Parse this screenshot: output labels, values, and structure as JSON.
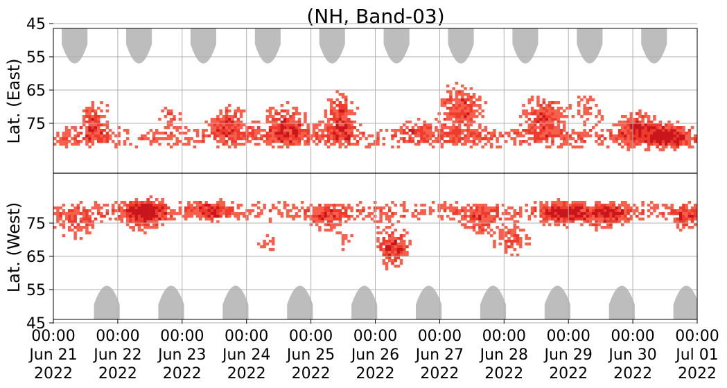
{
  "chart_data": {
    "type": "heatmap",
    "title": "(NH, Band-03)",
    "ylabel_top": "Lat. (East)",
    "ylabel_bottom": "Lat. (West)",
    "y_tick_labels_top": [
      "45",
      "55",
      "65",
      "75"
    ],
    "y_tick_labels_bottom": [
      "75",
      "65",
      "55",
      "45"
    ],
    "y_ticks_top": [
      45,
      55,
      65,
      75
    ],
    "y_ticks_bottom": [
      75,
      65,
      55,
      45
    ],
    "y_axis_note": "latitude folded at the pole: east half on top, west half below, pole line at center",
    "x_ticks": [
      {
        "time": "00:00",
        "date": "Jun 21",
        "year": "2022"
      },
      {
        "time": "00:00",
        "date": "Jun 22",
        "year": "2022"
      },
      {
        "time": "00:00",
        "date": "Jun 23",
        "year": "2022"
      },
      {
        "time": "00:00",
        "date": "Jun 24",
        "year": "2022"
      },
      {
        "time": "00:00",
        "date": "Jun 25",
        "year": "2022"
      },
      {
        "time": "00:00",
        "date": "Jun 26",
        "year": "2022"
      },
      {
        "time": "00:00",
        "date": "Jun 27",
        "year": "2022"
      },
      {
        "time": "00:00",
        "date": "Jun 28",
        "year": "2022"
      },
      {
        "time": "00:00",
        "date": "Jun 29",
        "year": "2022"
      },
      {
        "time": "00:00",
        "date": "Jun 30",
        "year": "2022"
      },
      {
        "time": "00:00",
        "date": "Jul 01",
        "year": "2022"
      }
    ],
    "x_range": [
      "2022-06-21 00:00",
      "2022-07-01 00:00"
    ],
    "grid": true,
    "colors": {
      "high": "#c8161c",
      "medium": "#ef3b2c",
      "low": "#f6604c",
      "no_coverage": "#bdbdbd",
      "grid": "#b0b0b0",
      "pole_line": "#000000"
    },
    "no_coverage_lobes": {
      "top_centers_day": [
        0.33,
        1.33,
        2.33,
        3.33,
        4.33,
        5.33,
        6.33,
        7.33,
        8.33,
        9.33
      ],
      "bottom_centers_day": [
        0.83,
        1.83,
        2.83,
        3.83,
        4.83,
        5.83,
        6.83,
        7.83,
        8.83,
        9.83
      ],
      "half_width_day": 0.2,
      "top_reach_lat": 57,
      "bottom_reach_lat": 56
    },
    "activity_blobs": [
      {
        "day": 0.6,
        "lat": 73,
        "side": "east",
        "spread_day": 0.25,
        "spread_lat": 6,
        "intensity": 0.8
      },
      {
        "day": 0.35,
        "lat": 74,
        "side": "west",
        "spread_day": 0.35,
        "spread_lat": 4,
        "intensity": 0.6
      },
      {
        "day": 1.4,
        "lat": 78,
        "side": "west",
        "spread_day": 0.3,
        "spread_lat": 5,
        "intensity": 0.9
      },
      {
        "day": 1.8,
        "lat": 72,
        "side": "east",
        "spread_day": 0.2,
        "spread_lat": 4,
        "intensity": 0.6
      },
      {
        "day": 2.7,
        "lat": 74,
        "side": "east",
        "spread_day": 0.3,
        "spread_lat": 5,
        "intensity": 0.8
      },
      {
        "day": 2.4,
        "lat": 79,
        "side": "west",
        "spread_day": 0.3,
        "spread_lat": 3,
        "intensity": 0.6
      },
      {
        "day": 3.3,
        "lat": 70,
        "side": "west",
        "spread_day": 0.2,
        "spread_lat": 4,
        "intensity": 0.5
      },
      {
        "day": 3.6,
        "lat": 74,
        "side": "east",
        "spread_day": 0.4,
        "spread_lat": 6,
        "intensity": 0.8
      },
      {
        "day": 4.45,
        "lat": 72,
        "side": "east",
        "spread_day": 0.25,
        "spread_lat": 7,
        "intensity": 0.9
      },
      {
        "day": 4.2,
        "lat": 76,
        "side": "west",
        "spread_day": 0.3,
        "spread_lat": 4,
        "intensity": 0.6
      },
      {
        "day": 4.5,
        "lat": 70,
        "side": "west",
        "spread_day": 0.15,
        "spread_lat": 5,
        "intensity": 0.5
      },
      {
        "day": 5.25,
        "lat": 68,
        "side": "west",
        "spread_day": 0.3,
        "spread_lat": 6,
        "intensity": 1.0
      },
      {
        "day": 5.6,
        "lat": 76,
        "side": "east",
        "spread_day": 0.3,
        "spread_lat": 3,
        "intensity": 0.5
      },
      {
        "day": 6.3,
        "lat": 70,
        "side": "east",
        "spread_day": 0.4,
        "spread_lat": 7,
        "intensity": 0.9
      },
      {
        "day": 6.6,
        "lat": 75,
        "side": "west",
        "spread_day": 0.3,
        "spread_lat": 4,
        "intensity": 0.6
      },
      {
        "day": 7.1,
        "lat": 70,
        "side": "west",
        "spread_day": 0.3,
        "spread_lat": 5,
        "intensity": 0.7
      },
      {
        "day": 7.6,
        "lat": 72,
        "side": "east",
        "spread_day": 0.35,
        "spread_lat": 6,
        "intensity": 0.9
      },
      {
        "day": 7.9,
        "lat": 78,
        "side": "west",
        "spread_day": 0.3,
        "spread_lat": 4,
        "intensity": 0.8
      },
      {
        "day": 8.3,
        "lat": 70,
        "side": "east",
        "spread_day": 0.25,
        "spread_lat": 6,
        "intensity": 0.6
      },
      {
        "day": 8.6,
        "lat": 77,
        "side": "west",
        "spread_day": 0.35,
        "spread_lat": 4,
        "intensity": 0.7
      },
      {
        "day": 9.0,
        "lat": 75,
        "side": "east",
        "spread_day": 0.3,
        "spread_lat": 5,
        "intensity": 0.8
      },
      {
        "day": 9.5,
        "lat": 78,
        "side": "east",
        "spread_day": 0.3,
        "spread_lat": 4,
        "intensity": 0.9
      },
      {
        "day": 9.8,
        "lat": 76,
        "side": "west",
        "spread_day": 0.2,
        "spread_lat": 4,
        "intensity": 0.6
      }
    ]
  }
}
